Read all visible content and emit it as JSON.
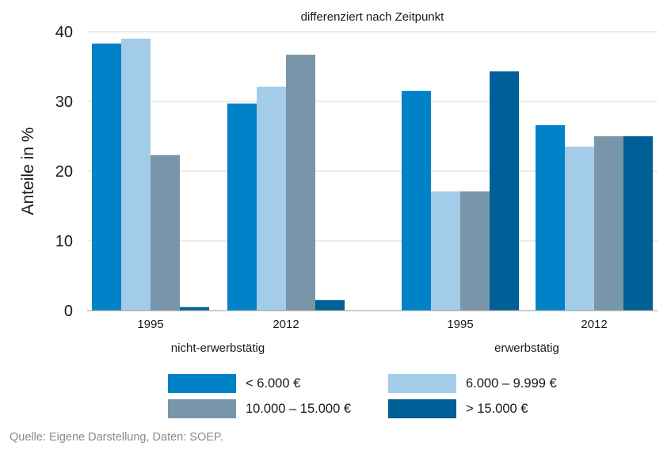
{
  "chart_data": {
    "type": "bar",
    "title": "differenziert nach Zeitpunkt",
    "ylabel": "Anteile in %",
    "xlabel": "",
    "ylim": [
      0,
      40
    ],
    "yticks": [
      "0",
      "10",
      "20",
      "30",
      "40"
    ],
    "grid": true,
    "legend_position": "bottom",
    "groups": [
      {
        "label": "nicht-erwerbstätig",
        "categories": [
          "1995",
          "2012"
        ]
      },
      {
        "label": "erwerbstätig",
        "categories": [
          "1995",
          "2012"
        ]
      }
    ],
    "categories": [
      "1995",
      "2012",
      "1995",
      "2012"
    ],
    "series": [
      {
        "name": "< 6.000 €",
        "color": "#0082c8",
        "values": [
          38.3,
          29.7,
          31.5,
          26.6
        ]
      },
      {
        "name": "6.000 – 9.999 €",
        "color": "#a3cce9",
        "values": [
          39.0,
          32.1,
          17.1,
          23.5
        ]
      },
      {
        "name": "10.000 – 15.000 €",
        "color": "#7895aa",
        "values": [
          22.3,
          36.7,
          17.1,
          25.0
        ]
      },
      {
        "name": "> 15.000 €",
        "color": "#005f96",
        "values": [
          0.5,
          1.5,
          34.3,
          25.0
        ]
      }
    ]
  },
  "source_text": "Quelle: Eigene Darstellung, Daten: SOEP."
}
